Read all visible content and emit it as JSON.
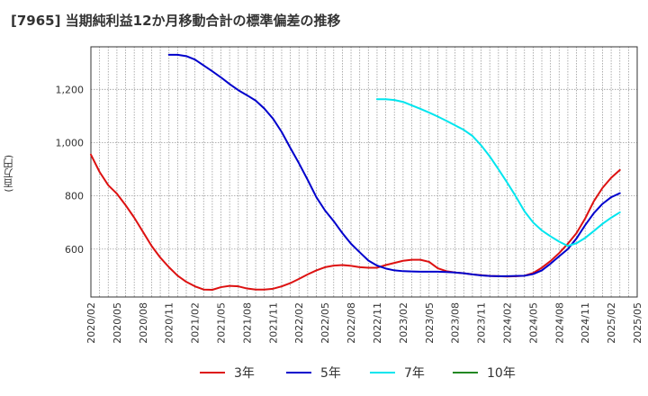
{
  "chart_data": {
    "type": "line",
    "title": "[7965]  当期純利益12か月移動合計の標準偏差の推移",
    "ylabel": "(百万円)",
    "xlabel": "",
    "ylim": [
      420,
      1360
    ],
    "yticks": [
      600,
      800,
      1000,
      1200
    ],
    "ytick_labels": [
      "600",
      "800",
      "1,000",
      "1,200"
    ],
    "xlim": [
      "2020-02",
      "2025-05"
    ],
    "x_tick_labels": [
      "2020/02",
      "2020/05",
      "2020/08",
      "2020/11",
      "2021/02",
      "2021/05",
      "2021/08",
      "2021/11",
      "2022/02",
      "2022/05",
      "2022/08",
      "2022/11",
      "2023/02",
      "2023/05",
      "2023/08",
      "2023/11",
      "2024/02",
      "2024/05",
      "2024/08",
      "2024/11",
      "2025/02",
      "2025/05"
    ],
    "grid": true,
    "legend_position": "bottom",
    "series": [
      {
        "name": "3年",
        "color": "#dd1111",
        "start": "2020-02",
        "values": [
          955,
          890,
          840,
          808,
          765,
          718,
          665,
          612,
          568,
          532,
          500,
          477,
          460,
          448,
          447,
          457,
          462,
          460,
          452,
          448,
          448,
          451,
          460,
          472,
          488,
          505,
          520,
          532,
          538,
          540,
          537,
          532,
          530,
          530,
          540,
          548,
          556,
          560,
          560,
          552,
          528,
          517,
          512,
          509,
          505,
          502,
          499,
          498,
          497,
          498,
          500,
          510,
          530,
          555,
          585,
          620,
          660,
          715,
          780,
          830,
          868,
          897
        ]
      },
      {
        "name": "5年",
        "color": "#0000cc",
        "start": "2020-11",
        "values": [
          1330,
          1330,
          1325,
          1312,
          1290,
          1268,
          1245,
          1220,
          1197,
          1178,
          1158,
          1128,
          1090,
          1040,
          980,
          922,
          860,
          795,
          745,
          705,
          660,
          620,
          588,
          557,
          538,
          527,
          520,
          517,
          516,
          515,
          515,
          515,
          514,
          512,
          509,
          505,
          501,
          499,
          498,
          498,
          499,
          500,
          506,
          520,
          545,
          573,
          600,
          640,
          690,
          735,
          770,
          795,
          810
        ]
      },
      {
        "name": "7年",
        "color": "#00e5ee",
        "start": "2022-11",
        "values": [
          1163,
          1163,
          1160,
          1153,
          1140,
          1127,
          1113,
          1098,
          1082,
          1065,
          1048,
          1025,
          990,
          948,
          900,
          850,
          798,
          742,
          700,
          670,
          648,
          628,
          612,
          622,
          642,
          668,
          695,
          718,
          738
        ]
      },
      {
        "name": "10年",
        "color": "#228822",
        "start": "2025-02",
        "values": []
      }
    ]
  }
}
